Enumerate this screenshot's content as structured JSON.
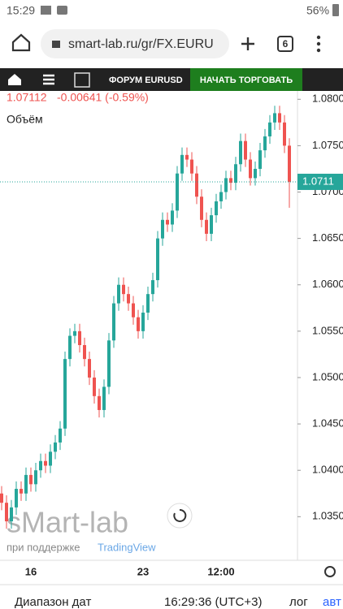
{
  "status_bar": {
    "time": "15:29",
    "battery": "56%"
  },
  "browser": {
    "url": "smart-lab.ru/gr/FX.EURU",
    "tab_count": "6"
  },
  "site_nav": {
    "forum": "ФОРУМ EURUSD",
    "trade_button": "НАЧАТЬ ТОРГОВАТЬ"
  },
  "chart_data": {
    "type": "candlestick",
    "legend": {
      "price": "1.07112",
      "change": "-0.00641 (-0.59%)",
      "volume_label": "Объём"
    },
    "watermark": "sMart-lab",
    "credit_prefix": "при поддержке",
    "credit_brand": "TradingView",
    "categories": [
      null,
      null,
      null,
      null,
      null,
      null,
      "16",
      null,
      null,
      null,
      null,
      null,
      null,
      null,
      null,
      null,
      null,
      null,
      null,
      null,
      null,
      null,
      null,
      null,
      null,
      null,
      null,
      null,
      null,
      "23",
      null,
      null,
      null,
      null,
      null,
      null,
      null,
      null,
      null,
      null,
      null,
      null,
      null,
      null,
      null,
      "12:00",
      null,
      null,
      null,
      null,
      null,
      null,
      null,
      null,
      null,
      null,
      null,
      null,
      null,
      null
    ],
    "open": [
      1.0375,
      1.0365,
      1.0345,
      1.036,
      1.038,
      1.0375,
      1.0395,
      1.0385,
      1.04,
      1.041,
      1.0405,
      1.042,
      1.043,
      1.0445,
      1.052,
      1.0545,
      1.055,
      1.0535,
      1.052,
      1.05,
      1.048,
      1.0465,
      1.049,
      1.054,
      1.058,
      1.06,
      1.059,
      1.058,
      1.0565,
      1.055,
      1.057,
      1.059,
      1.0605,
      1.065,
      1.067,
      1.0665,
      1.068,
      1.072,
      1.074,
      1.0735,
      1.072,
      1.0695,
      1.067,
      1.0655,
      1.0675,
      1.069,
      1.07,
      1.0715,
      1.071,
      1.073,
      1.0755,
      1.0735,
      1.0715,
      1.0725,
      1.0745,
      1.076,
      1.0775,
      1.0785,
      1.0775,
      1.075
    ],
    "high": [
      1.0383,
      1.0373,
      1.0368,
      1.0388,
      1.0388,
      1.0403,
      1.0403,
      1.0408,
      1.0418,
      1.0418,
      1.0428,
      1.0438,
      1.0453,
      1.0528,
      1.0553,
      1.0558,
      1.0558,
      1.0543,
      1.0528,
      1.0508,
      1.0488,
      1.0498,
      1.0548,
      1.0588,
      1.0608,
      1.0608,
      1.0598,
      1.0588,
      1.0573,
      1.0578,
      1.0598,
      1.0613,
      1.0658,
      1.0678,
      1.0678,
      1.0688,
      1.0728,
      1.0748,
      1.0748,
      1.0743,
      1.0728,
      1.0703,
      1.0678,
      1.0683,
      1.0698,
      1.0708,
      1.0723,
      1.0723,
      1.0738,
      1.0763,
      1.0763,
      1.0743,
      1.0733,
      1.0753,
      1.0768,
      1.0783,
      1.0793,
      1.0793,
      1.0783,
      1.0758
    ],
    "low": [
      1.0357,
      1.0337,
      1.0337,
      1.0352,
      1.0367,
      1.0367,
      1.0377,
      1.0377,
      1.0392,
      1.0397,
      1.0397,
      1.0412,
      1.0422,
      1.0437,
      1.0512,
      1.0537,
      1.0527,
      1.0512,
      1.0492,
      1.0472,
      1.0457,
      1.0457,
      1.0482,
      1.0532,
      1.0572,
      1.0582,
      1.0572,
      1.0557,
      1.0542,
      1.0542,
      1.0562,
      1.0582,
      1.0597,
      1.0642,
      1.0657,
      1.0657,
      1.0672,
      1.0712,
      1.0727,
      1.0712,
      1.0687,
      1.0662,
      1.0647,
      1.0647,
      1.0667,
      1.0682,
      1.0692,
      1.0702,
      1.0702,
      1.0722,
      1.0727,
      1.0707,
      1.0707,
      1.0717,
      1.0737,
      1.0752,
      1.0767,
      1.0767,
      1.0742,
      1.0683
    ],
    "close": [
      1.0365,
      1.0345,
      1.036,
      1.038,
      1.0375,
      1.0395,
      1.0385,
      1.04,
      1.041,
      1.0405,
      1.042,
      1.043,
      1.0445,
      1.052,
      1.0545,
      1.055,
      1.0535,
      1.052,
      1.05,
      1.048,
      1.0465,
      1.049,
      1.054,
      1.058,
      1.06,
      1.059,
      1.058,
      1.0565,
      1.055,
      1.057,
      1.059,
      1.0605,
      1.065,
      1.067,
      1.0665,
      1.068,
      1.072,
      1.074,
      1.0735,
      1.072,
      1.0695,
      1.067,
      1.0655,
      1.0675,
      1.069,
      1.07,
      1.0715,
      1.071,
      1.073,
      1.0755,
      1.0735,
      1.0715,
      1.0725,
      1.0745,
      1.076,
      1.0775,
      1.0785,
      1.0775,
      1.075,
      1.0711
    ],
    "up_color": "#26a69a",
    "down_color": "#ef5350",
    "ylim": [
      1.0303,
      1.0809
    ],
    "yticks": [
      {
        "value": 1.08,
        "label": "1.0800"
      },
      {
        "value": 1.075,
        "label": "1.0750"
      },
      {
        "value": 1.07,
        "label": "1.0700"
      },
      {
        "value": 1.065,
        "label": "1.0650"
      },
      {
        "value": 1.06,
        "label": "1.0600"
      },
      {
        "value": 1.055,
        "label": "1.0550"
      },
      {
        "value": 1.05,
        "label": "1.0500"
      },
      {
        "value": 1.045,
        "label": "1.0450"
      },
      {
        "value": 1.04,
        "label": "1.0400"
      },
      {
        "value": 1.035,
        "label": "1.0350"
      }
    ],
    "last_price": {
      "value": 1.0711,
      "label": "1.0711"
    }
  },
  "footer": {
    "date_range": "Диапазон дат",
    "clock": "16:29:36 (UTC+3)",
    "log": "лог",
    "auto": "авт"
  }
}
